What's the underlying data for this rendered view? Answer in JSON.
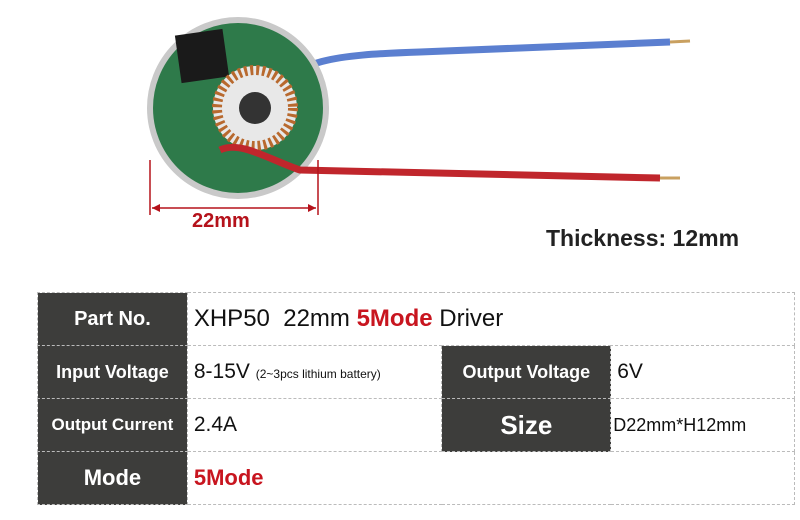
{
  "dimension_label": "22mm",
  "thickness_label": "Thickness: 12mm",
  "colors": {
    "accent_red": "#c8151f",
    "header_bg": "#3d3d3b",
    "wire_blue": "#5b7fd0",
    "wire_red": "#c0262c"
  },
  "specs": {
    "part_no": {
      "label": "Part No.",
      "value_prefix": "XHP50  22mm ",
      "value_highlight": "5Mode",
      "value_suffix": " Driver"
    },
    "input_voltage": {
      "label": "Input Voltage",
      "value": "8-15V",
      "note": "(2~3pcs lithium battery)"
    },
    "output_voltage": {
      "label": "Output Voltage",
      "value": "6V"
    },
    "output_current": {
      "label": "Output Current",
      "value": "2.4A"
    },
    "size": {
      "label": "Size",
      "value": "D22mm*H12mm"
    },
    "mode": {
      "label": "Mode",
      "value": "5Mode"
    }
  }
}
